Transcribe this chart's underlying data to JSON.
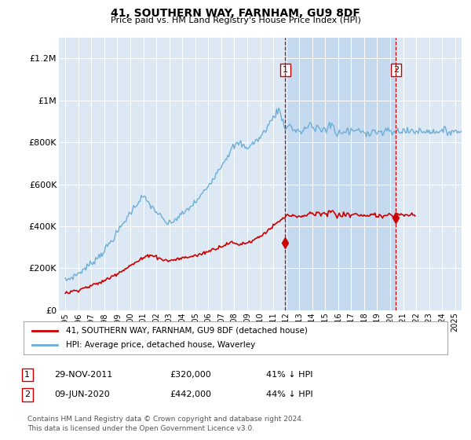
{
  "title": "41, SOUTHERN WAY, FARNHAM, GU9 8DF",
  "subtitle": "Price paid vs. HM Land Registry's House Price Index (HPI)",
  "background_color": "#ffffff",
  "plot_bg_color": "#dce9f5",
  "shade_color": "#c5d9ef",
  "hpi_color": "#6baed6",
  "price_color": "#cc0000",
  "ylim": [
    0,
    1300000
  ],
  "yticks": [
    0,
    200000,
    400000,
    600000,
    800000,
    1000000,
    1200000
  ],
  "ytick_labels": [
    "£0",
    "£200K",
    "£400K",
    "£600K",
    "£800K",
    "£1M",
    "£1.2M"
  ],
  "purchase1_year": 2011.92,
  "purchase1_price": 320000,
  "purchase2_year": 2020.44,
  "purchase2_price": 442000,
  "legend_label_price": "41, SOUTHERN WAY, FARNHAM, GU9 8DF (detached house)",
  "legend_label_hpi": "HPI: Average price, detached house, Waverley",
  "annotation1_label": "1",
  "annotation1_date": "29-NOV-2011",
  "annotation1_price": "£320,000",
  "annotation1_hpi": "41% ↓ HPI",
  "annotation2_label": "2",
  "annotation2_date": "09-JUN-2020",
  "annotation2_price": "£442,000",
  "annotation2_hpi": "44% ↓ HPI",
  "footer": "Contains HM Land Registry data © Crown copyright and database right 2024.\nThis data is licensed under the Open Government Licence v3.0.",
  "hpi_data": [
    140000,
    143000,
    146000,
    148000,
    151000,
    154000,
    157000,
    160000,
    163000,
    166000,
    169000,
    172000,
    175000,
    179000,
    183000,
    187000,
    191000,
    195000,
    199000,
    203000,
    207000,
    211000,
    215000,
    219000,
    223000,
    228000,
    233000,
    238000,
    243000,
    248000,
    253000,
    258000,
    263000,
    268000,
    273000,
    278000,
    285000,
    292000,
    299000,
    306000,
    313000,
    320000,
    327000,
    334000,
    341000,
    348000,
    355000,
    362000,
    370000,
    378000,
    386000,
    394000,
    402000,
    410000,
    418000,
    426000,
    434000,
    442000,
    450000,
    458000,
    465000,
    472000,
    479000,
    486000,
    493000,
    500000,
    507000,
    514000,
    521000,
    528000,
    535000,
    542000,
    538000,
    533000,
    528000,
    522000,
    516000,
    510000,
    504000,
    498000,
    492000,
    486000,
    480000,
    474000,
    470000,
    464000,
    458000,
    452000,
    446000,
    440000,
    434000,
    428000,
    422000,
    418000,
    414000,
    410000,
    412000,
    415000,
    418000,
    422000,
    426000,
    430000,
    434000,
    438000,
    442000,
    446000,
    450000,
    454000,
    458000,
    462000,
    466000,
    470000,
    475000,
    480000,
    485000,
    490000,
    495000,
    500000,
    505000,
    510000,
    515000,
    520000,
    525000,
    530000,
    537000,
    544000,
    551000,
    558000,
    565000,
    572000,
    579000,
    586000,
    594000,
    602000,
    610000,
    618000,
    626000,
    634000,
    642000,
    650000,
    658000,
    666000,
    674000,
    682000,
    690000,
    698000,
    706000,
    714000,
    722000,
    730000,
    738000,
    746000,
    754000,
    762000,
    770000,
    778000,
    782000,
    785000,
    788000,
    791000,
    794000,
    797000,
    793000,
    789000,
    785000,
    781000,
    777000,
    773000,
    776000,
    779000,
    782000,
    786000,
    790000,
    794000,
    798000,
    802000,
    806000,
    810000,
    814000,
    818000,
    822000,
    830000,
    838000,
    846000,
    854000,
    862000,
    870000,
    878000,
    886000,
    894000,
    902000,
    910000,
    918000,
    926000,
    934000,
    942000,
    950000,
    958000,
    944000,
    930000,
    916000,
    902000,
    888000,
    874000,
    865000,
    870000,
    875000,
    880000,
    885000,
    875000,
    865000,
    860000,
    855000,
    850000,
    858000,
    866000,
    858000,
    850000,
    842000,
    848000,
    854000,
    860000,
    866000,
    872000,
    878000,
    884000,
    890000,
    896000,
    870000,
    865000,
    860000,
    855000,
    872000,
    880000,
    868000,
    856000,
    844000,
    852000,
    870000,
    868000,
    866000,
    860000,
    850000,
    880000,
    890000,
    875000,
    882000,
    888000,
    878000,
    860000,
    840000,
    830000,
    840000,
    855000,
    845000,
    835000,
    845000,
    858000,
    848000,
    840000,
    852000,
    862000,
    850000,
    840000,
    855000,
    860000,
    858000,
    852000,
    860000,
    855000,
    858000,
    855000,
    850000,
    852000,
    848000,
    846000,
    850000,
    848000,
    845000,
    844000,
    848000,
    846000,
    850000,
    852000,
    855000,
    856000,
    854000,
    852000,
    850000,
    845000,
    848000,
    850000,
    845000,
    840000,
    845000,
    848000,
    852000,
    855000,
    857000,
    858000,
    855000,
    850000,
    848000,
    846000,
    845000,
    848000,
    852000,
    856000,
    858000,
    855000,
    854000,
    852000,
    855000,
    858000,
    854000,
    850000,
    848000,
    850000,
    852000,
    855000,
    858000,
    856000,
    853000,
    851000,
    850000,
    852000,
    855000,
    858000,
    855000,
    851000,
    848000,
    850000,
    852000,
    855000,
    857000,
    858000,
    855000,
    852000,
    848000,
    845000,
    848000,
    852000,
    855000,
    858000,
    854000,
    851000,
    850000,
    848000,
    850000,
    852000,
    855000,
    858000,
    854000,
    851000,
    848000,
    850000,
    852000,
    855000,
    857000,
    855000,
    853000,
    850000,
    848000,
    850000,
    852000,
    855000,
    854000,
    852000,
    850000,
    848000,
    850000,
    851000
  ],
  "price_data": [
    80000,
    81500,
    83000,
    84500,
    86000,
    87500,
    89000,
    90500,
    92000,
    93500,
    95000,
    96500,
    98000,
    99500,
    101000,
    102500,
    104000,
    105500,
    107000,
    108500,
    110000,
    111500,
    113000,
    114500,
    116000,
    118000,
    120000,
    122000,
    124000,
    126000,
    128000,
    130000,
    132000,
    134000,
    136000,
    138000,
    140000,
    143000,
    146000,
    149000,
    152000,
    155000,
    158000,
    161000,
    164000,
    167000,
    170000,
    173000,
    176000,
    179000,
    182000,
    185000,
    188000,
    191000,
    194000,
    197000,
    200000,
    203000,
    206000,
    209000,
    212000,
    215000,
    218000,
    221000,
    224000,
    227000,
    230000,
    233000,
    236000,
    239000,
    242000,
    245000,
    248000,
    251000,
    254000,
    257000,
    260000,
    263000,
    266000,
    264000,
    262000,
    260000,
    258000,
    256000,
    254000,
    252000,
    250000,
    248000,
    246000,
    244000,
    242000,
    240000,
    238000,
    237000,
    236000,
    235000,
    236000,
    237000,
    238000,
    239000,
    240000,
    241000,
    242000,
    243000,
    244000,
    245000,
    246000,
    247000,
    248000,
    249000,
    250000,
    251000,
    252000,
    253000,
    254000,
    255000,
    256000,
    257000,
    258000,
    259000,
    260000,
    261000,
    262000,
    263000,
    265000,
    267000,
    269000,
    271000,
    273000,
    275000,
    277000,
    279000,
    281000,
    283000,
    285000,
    287000,
    289000,
    291000,
    293000,
    295000,
    297000,
    299000,
    301000,
    303000,
    305000,
    307000,
    309000,
    311000,
    313000,
    315000,
    317000,
    319000,
    320000,
    321000,
    322000,
    321000,
    319000,
    317000,
    315000,
    314000,
    314000,
    315000,
    316000,
    317000,
    318000,
    319000,
    320000,
    321000,
    322000,
    324000,
    326000,
    328000,
    330000,
    332000,
    335000,
    338000,
    341000,
    344000,
    347000,
    350000,
    353000,
    356000,
    360000,
    364000,
    368000,
    372000,
    376000,
    380000,
    384000,
    388000,
    392000,
    396000,
    400000,
    404000,
    408000,
    412000,
    416000,
    420000,
    424000,
    428000,
    432000,
    436000,
    440000,
    444000,
    448000,
    452000,
    452000,
    451000,
    450000,
    449000,
    448000,
    447000,
    446000,
    445000,
    444000,
    443000,
    442000,
    443000,
    444000,
    446000,
    448000,
    450000,
    452000,
    454000,
    456000,
    458000,
    460000,
    462000,
    464000,
    462000,
    460000,
    458000,
    466000,
    470000,
    462000,
    456000,
    450000,
    453000,
    462000,
    461000,
    460000,
    456000,
    450000,
    470000,
    476000,
    466000,
    470000,
    474000,
    468000,
    458000,
    448000,
    444000,
    450000,
    460000,
    452000,
    444000,
    452000,
    462000,
    454000,
    448000,
    456000,
    464000,
    454000,
    446000,
    456000,
    460000,
    458000,
    454000,
    460000,
    456000,
    458000,
    455000,
    451000,
    453000,
    450000,
    448000,
    452000,
    450000,
    448000,
    447000,
    450000,
    448000,
    452000,
    454000,
    456000,
    457000,
    455000,
    453000,
    451000,
    447000,
    450000,
    452000,
    448000,
    444000,
    448000,
    451000,
    454000,
    457000,
    459000,
    460000,
    457000,
    453000,
    450000,
    448000,
    447000,
    450000,
    454000,
    458000,
    460000,
    457000,
    456000,
    454000,
    457000,
    460000,
    456000,
    452000,
    450000,
    452000,
    454000,
    457000,
    460000,
    458000,
    455000,
    453000
  ]
}
